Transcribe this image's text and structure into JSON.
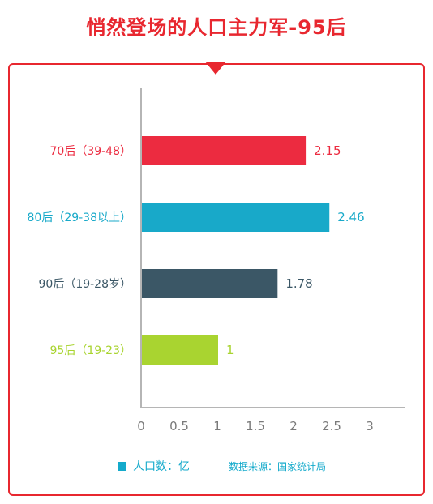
{
  "title": "悄然登场的人口主力军-95后",
  "chart_data": {
    "type": "bar",
    "orientation": "horizontal",
    "categories": [
      "70后（39-48）",
      "80后（29-38以上）",
      "90后（19-28岁）",
      "95后（19-23）"
    ],
    "values": [
      2.15,
      2.46,
      1.78,
      1
    ],
    "value_labels": [
      "2.15",
      "2.46",
      "1.78",
      "1"
    ],
    "category_colors": [
      "#ec2b40",
      "#18a9c9",
      "#3b5766",
      "#a9d430"
    ],
    "xlim": [
      0,
      3.5
    ],
    "x_ticks": [
      "0",
      "0.5",
      "1",
      "1.5",
      "2",
      "2.5",
      "3"
    ],
    "legend_position": "bottom-left",
    "grid": false
  },
  "legend": {
    "label": "人口数：亿",
    "color": "#14aacb"
  },
  "source": "数据来源：国家统计局",
  "colors": {
    "accent": "#e8272f",
    "axis": "#b5b5b5",
    "tick_text": "#7a7a7a"
  }
}
